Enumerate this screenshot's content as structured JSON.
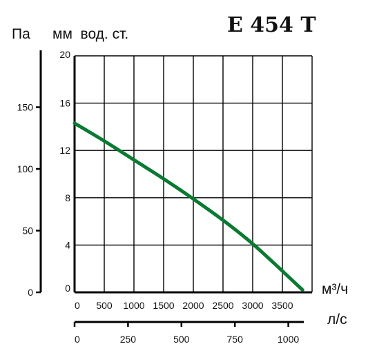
{
  "chart_data": {
    "type": "line",
    "title": "E 454 T",
    "left_axis": {
      "unit_label": "Па",
      "ticks": [
        0,
        50,
        100,
        150
      ]
    },
    "y_axis": {
      "unit_label": "мм  вод. ст.",
      "ticks": [
        0,
        4,
        8,
        12,
        16,
        20
      ],
      "range": [
        0,
        20
      ]
    },
    "x_axis": {
      "unit_label": "м³/ч",
      "ticks": [
        0,
        500,
        1000,
        1500,
        2000,
        2500,
        3000,
        3500
      ],
      "range": [
        0,
        4000
      ]
    },
    "secondary_x_axis": {
      "unit_label": "л/с",
      "ticks": [
        0,
        250,
        500,
        750,
        1000
      ]
    },
    "grid": true,
    "series": [
      {
        "color": "#0a7a33",
        "x": [
          0,
          500,
          1000,
          1500,
          2000,
          2500,
          3000,
          3500,
          3840
        ],
        "y": [
          14.3,
          12.8,
          11.2,
          9.6,
          7.9,
          6.1,
          4.1,
          1.8,
          0.2
        ]
      }
    ]
  }
}
